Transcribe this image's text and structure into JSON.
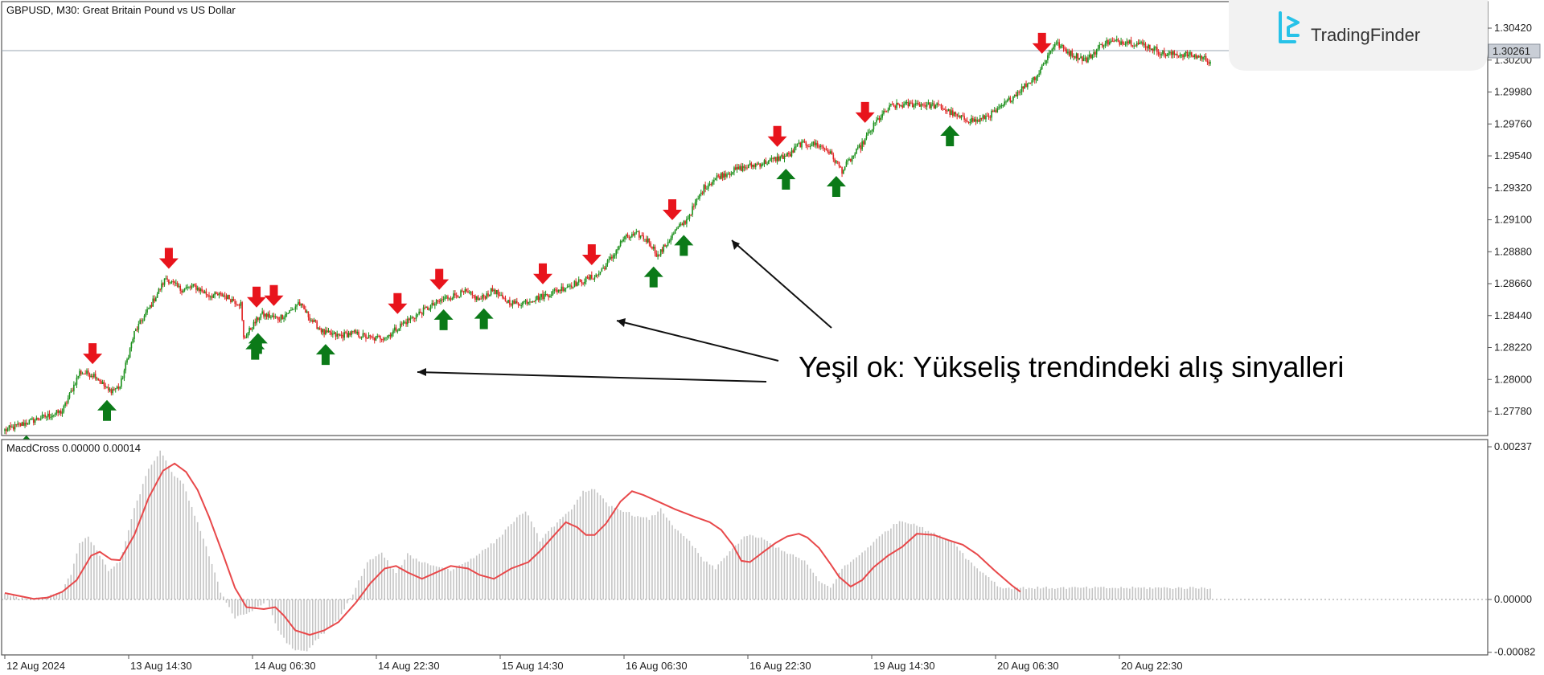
{
  "header": {
    "price_title": "GBPUSD, M30:  Great Britain Pound vs US Dollar",
    "indicator_title": "MacdCross 0.00000 0.00014"
  },
  "logo": {
    "text": "TradingFinder"
  },
  "annotation": {
    "text": "Yeşil ok: Yükseliş trendindeki alış sinyalleri"
  },
  "colors": {
    "bull": "#1a8f1a",
    "bear": "#e02020",
    "buy_arrow": "#0b7a18",
    "sell_arrow": "#e8141c",
    "signal_line": "#e8484a",
    "histogram": "#c4c4c4",
    "grid_border": "#555555"
  },
  "chart_data": [
    {
      "type": "candlestick",
      "title": "GBPUSD, M30:  Great Britain Pound vs US Dollar",
      "ylim": [
        1.2758,
        1.3052
      ],
      "y_ticks": [
        "1.30420",
        "1.30200",
        "1.29980",
        "1.29760",
        "1.29540",
        "1.29320",
        "1.29100",
        "1.28880",
        "1.28660",
        "1.28440",
        "1.28220",
        "1.28000",
        "1.27780"
      ],
      "current_price": "1.30261",
      "x_ticks": [
        "12 Aug 2024",
        "13 Aug 14:30",
        "14 Aug 06:30",
        "14 Aug 22:30",
        "15 Aug 14:30",
        "16 Aug 06:30",
        "16 Aug 22:30",
        "19 Aug 14:30",
        "20 Aug 06:30",
        "20 Aug 22:30"
      ],
      "close_path": [
        [
          0,
          1.2765
        ],
        [
          20,
          1.2772
        ],
        [
          40,
          1.2778
        ],
        [
          52,
          1.2805
        ],
        [
          63,
          1.2803
        ],
        [
          72,
          1.2792
        ],
        [
          80,
          1.2795
        ],
        [
          90,
          1.2832
        ],
        [
          102,
          1.2852
        ],
        [
          112,
          1.287
        ],
        [
          122,
          1.2862
        ],
        [
          132,
          1.2864
        ],
        [
          142,
          1.2858
        ],
        [
          152,
          1.2858
        ],
        [
          164,
          1.2852
        ],
        [
          166,
          1.2828
        ],
        [
          178,
          1.2845
        ],
        [
          190,
          1.2842
        ],
        [
          200,
          1.2848
        ],
        [
          204,
          1.2853
        ],
        [
          214,
          1.284
        ],
        [
          222,
          1.2832
        ],
        [
          232,
          1.283
        ],
        [
          242,
          1.2832
        ],
        [
          256,
          1.2828
        ],
        [
          266,
          1.283
        ],
        [
          276,
          1.2838
        ],
        [
          292,
          1.2848
        ],
        [
          306,
          1.2856
        ],
        [
          320,
          1.286
        ],
        [
          330,
          1.2855
        ],
        [
          340,
          1.2862
        ],
        [
          346,
          1.2855
        ],
        [
          356,
          1.2852
        ],
        [
          366,
          1.2855
        ],
        [
          376,
          1.2858
        ],
        [
          390,
          1.2864
        ],
        [
          402,
          1.2868
        ],
        [
          412,
          1.2872
        ],
        [
          422,
          1.2884
        ],
        [
          430,
          1.2897
        ],
        [
          440,
          1.29
        ],
        [
          448,
          1.2895
        ],
        [
          454,
          1.2885
        ],
        [
          466,
          1.2902
        ],
        [
          474,
          1.291
        ],
        [
          486,
          1.2932
        ],
        [
          496,
          1.294
        ],
        [
          510,
          1.2945
        ],
        [
          530,
          1.295
        ],
        [
          546,
          1.2955
        ],
        [
          552,
          1.2962
        ],
        [
          564,
          1.2962
        ],
        [
          572,
          1.2958
        ],
        [
          582,
          1.2944
        ],
        [
          596,
          1.2962
        ],
        [
          606,
          1.2978
        ],
        [
          616,
          1.2988
        ],
        [
          634,
          1.299
        ],
        [
          650,
          1.2988
        ],
        [
          664,
          1.298
        ],
        [
          676,
          1.2978
        ],
        [
          690,
          1.2985
        ],
        [
          704,
          1.2998
        ],
        [
          718,
          1.301
        ],
        [
          730,
          1.3032
        ],
        [
          740,
          1.3025
        ],
        [
          752,
          1.302
        ],
        [
          764,
          1.3032
        ],
        [
          780,
          1.3033
        ],
        [
          794,
          1.303
        ],
        [
          806,
          1.3024
        ],
        [
          820,
          1.3024
        ],
        [
          832,
          1.3022
        ],
        [
          838,
          1.3019
        ]
      ],
      "buy_signals_at_candle": [
        15,
        71,
        174,
        176,
        223,
        305,
        333,
        451,
        472,
        543,
        578,
        657
      ],
      "sell_signals_at_candle": [
        61,
        114,
        175,
        187,
        273,
        302,
        374,
        408,
        464,
        537,
        598,
        721
      ]
    },
    {
      "type": "histogram+line",
      "title": "MacdCross 0.00000 0.00014",
      "ylim": [
        -0.00082,
        0.00237
      ],
      "y_ticks": [
        "0.00237",
        "0.00000",
        "-0.00082"
      ],
      "histogram_path": [
        [
          0,
          9e-05
        ],
        [
          10,
          2e-05
        ],
        [
          20,
          1e-05
        ],
        [
          30,
          4e-05
        ],
        [
          40,
          0.00013
        ],
        [
          46,
          0.0004
        ],
        [
          52,
          0.00088
        ],
        [
          58,
          0.00098
        ],
        [
          66,
          0.00068
        ],
        [
          72,
          0.00045
        ],
        [
          80,
          0.00058
        ],
        [
          90,
          0.0014
        ],
        [
          100,
          0.00203
        ],
        [
          108,
          0.0023
        ],
        [
          116,
          0.00198
        ],
        [
          124,
          0.00178
        ],
        [
          134,
          0.0012
        ],
        [
          142,
          0.00068
        ],
        [
          150,
          0.00012
        ],
        [
          160,
          -0.00028
        ],
        [
          172,
          -0.00018
        ],
        [
          182,
          -2e-05
        ],
        [
          190,
          -0.00048
        ],
        [
          200,
          -0.00078
        ],
        [
          210,
          -0.0008
        ],
        [
          220,
          -0.00055
        ],
        [
          232,
          -0.00032
        ],
        [
          244,
          0.00018
        ],
        [
          252,
          0.00058
        ],
        [
          262,
          0.00072
        ],
        [
          272,
          0.0004
        ],
        [
          280,
          0.0007
        ],
        [
          290,
          0.00058
        ],
        [
          300,
          0.00052
        ],
        [
          310,
          0.00045
        ],
        [
          322,
          0.0006
        ],
        [
          332,
          0.00075
        ],
        [
          342,
          0.00092
        ],
        [
          352,
          0.00118
        ],
        [
          362,
          0.00138
        ],
        [
          372,
          0.00092
        ],
        [
          382,
          0.00115
        ],
        [
          392,
          0.00135
        ],
        [
          402,
          0.00168
        ],
        [
          410,
          0.0017
        ],
        [
          420,
          0.00145
        ],
        [
          430,
          0.00138
        ],
        [
          440,
          0.00128
        ],
        [
          448,
          0.00125
        ],
        [
          456,
          0.0014
        ],
        [
          468,
          0.00105
        ],
        [
          476,
          0.0009
        ],
        [
          486,
          0.0006
        ],
        [
          494,
          0.00048
        ],
        [
          504,
          0.00075
        ],
        [
          516,
          0.001
        ],
        [
          526,
          0.00095
        ],
        [
          536,
          0.00082
        ],
        [
          546,
          0.0007
        ],
        [
          556,
          0.0006
        ],
        [
          566,
          0.00028
        ],
        [
          574,
          0.00018
        ],
        [
          582,
          0.00048
        ],
        [
          592,
          0.00065
        ],
        [
          602,
          0.00085
        ],
        [
          612,
          0.00105
        ],
        [
          622,
          0.00122
        ],
        [
          632,
          0.00118
        ],
        [
          640,
          0.00108
        ],
        [
          650,
          0.00098
        ],
        [
          660,
          0.0009
        ],
        [
          668,
          0.00065
        ],
        [
          676,
          0.00048
        ],
        [
          684,
          0.00035
        ],
        [
          692,
          0.00018
        ]
      ],
      "signal_line_path": [
        [
          0,
          0.0001
        ],
        [
          20,
          1e-05
        ],
        [
          30,
          3e-05
        ],
        [
          40,
          0.00012
        ],
        [
          50,
          0.0003
        ],
        [
          60,
          0.00068
        ],
        [
          66,
          0.00074
        ],
        [
          74,
          0.00062
        ],
        [
          80,
          0.00061
        ],
        [
          90,
          0.001
        ],
        [
          100,
          0.00158
        ],
        [
          110,
          0.002
        ],
        [
          118,
          0.00211
        ],
        [
          126,
          0.00198
        ],
        [
          134,
          0.0017
        ],
        [
          142,
          0.00128
        ],
        [
          152,
          0.00068
        ],
        [
          160,
          0.00018
        ],
        [
          168,
          -0.00012
        ],
        [
          180,
          -0.00015
        ],
        [
          188,
          -0.00012
        ],
        [
          194,
          -0.00025
        ],
        [
          202,
          -0.00048
        ],
        [
          212,
          -0.00055
        ],
        [
          222,
          -0.00048
        ],
        [
          232,
          -0.00035
        ],
        [
          244,
          -5e-05
        ],
        [
          254,
          0.00025
        ],
        [
          264,
          0.00048
        ],
        [
          272,
          0.00052
        ],
        [
          280,
          0.00042
        ],
        [
          290,
          0.00032
        ],
        [
          300,
          0.00042
        ],
        [
          310,
          0.00052
        ],
        [
          322,
          0.00048
        ],
        [
          330,
          0.00038
        ],
        [
          340,
          0.00032
        ],
        [
          352,
          0.00048
        ],
        [
          364,
          0.00058
        ],
        [
          372,
          0.00075
        ],
        [
          382,
          0.001
        ],
        [
          390,
          0.0012
        ],
        [
          398,
          0.00112
        ],
        [
          404,
          0.001
        ],
        [
          410,
          0.001
        ],
        [
          418,
          0.00118
        ],
        [
          428,
          0.00152
        ],
        [
          436,
          0.00168
        ],
        [
          444,
          0.00162
        ],
        [
          454,
          0.00152
        ],
        [
          466,
          0.0014
        ],
        [
          480,
          0.00128
        ],
        [
          490,
          0.0012
        ],
        [
          498,
          0.00108
        ],
        [
          506,
          0.00085
        ],
        [
          512,
          0.0006
        ],
        [
          518,
          0.00058
        ],
        [
          528,
          0.00075
        ],
        [
          536,
          0.00088
        ],
        [
          544,
          0.00098
        ],
        [
          552,
          0.00102
        ],
        [
          558,
          0.00096
        ],
        [
          566,
          0.0008
        ],
        [
          574,
          0.00055
        ],
        [
          580,
          0.00035
        ],
        [
          588,
          0.0002
        ],
        [
          596,
          0.0003
        ],
        [
          604,
          0.0005
        ],
        [
          614,
          0.00068
        ],
        [
          624,
          0.00082
        ],
        [
          634,
          0.00102
        ],
        [
          646,
          0.001
        ],
        [
          656,
          0.00092
        ],
        [
          666,
          0.00085
        ],
        [
          676,
          0.0007
        ],
        [
          688,
          0.00045
        ],
        [
          700,
          0.00022
        ],
        [
          706,
          0.00012
        ]
      ]
    }
  ]
}
